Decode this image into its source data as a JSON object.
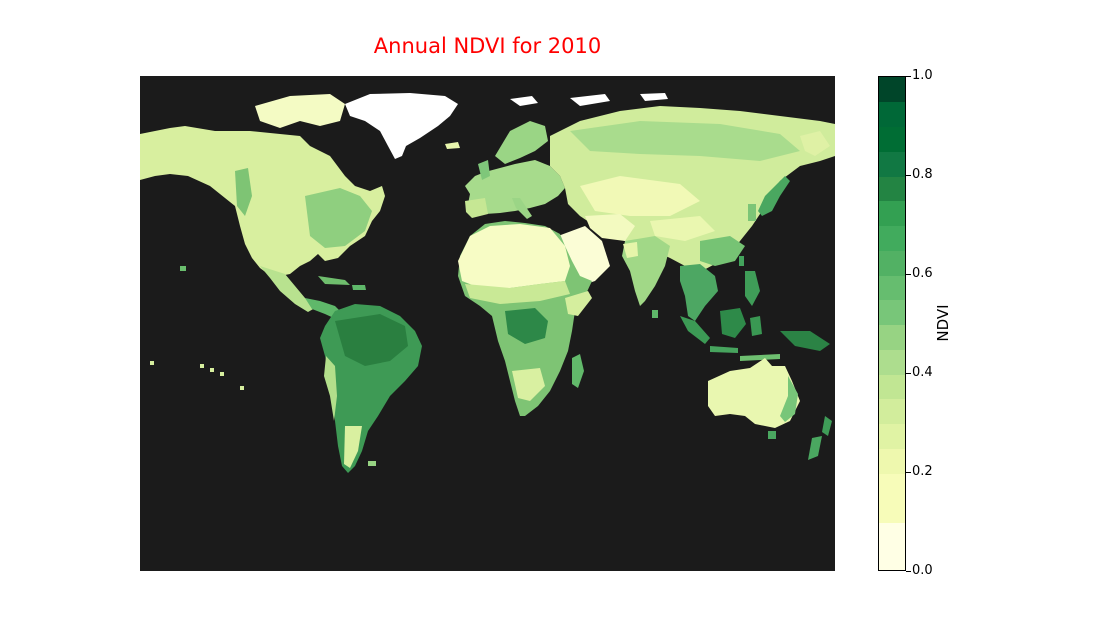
{
  "map": {
    "title": "Annual NDVI for 2010",
    "title_color": "#ff0000",
    "ocean_color": "#1b1b1b",
    "ice_color": "#ffffff",
    "projection": "Plate Carree (equirectangular), longitude -180 to 180, latitude approx. -58 to 82",
    "lat_range": [
      -58,
      82
    ],
    "lon_range": [
      -180,
      180
    ],
    "regions": [
      {
        "name": "north-america",
        "ndvi": 0.3
      },
      {
        "name": "alaska",
        "ndvi": 0.25
      },
      {
        "name": "greenland",
        "ndvi": 0.0
      },
      {
        "name": "central-america",
        "ndvi": 0.6
      },
      {
        "name": "south-america",
        "ndvi": 0.8
      },
      {
        "name": "europe",
        "ndvi": 0.45
      },
      {
        "name": "asia",
        "ndvi": 0.3
      },
      {
        "name": "arabia",
        "ndvi": 0.05
      },
      {
        "name": "india",
        "ndvi": 0.45
      },
      {
        "name": "southeast-asia",
        "ndvi": 0.75
      },
      {
        "name": "indonesia",
        "ndvi": 0.8
      },
      {
        "name": "africa",
        "ndvi": 0.5
      },
      {
        "name": "sahara",
        "ndvi": 0.1
      },
      {
        "name": "madagascar",
        "ndvi": 0.6
      },
      {
        "name": "australia",
        "ndvi": 0.2
      },
      {
        "name": "new-zealand",
        "ndvi": 0.7
      },
      {
        "name": "japan",
        "ndvi": 0.75
      }
    ]
  },
  "colorbar": {
    "label": "NDVI",
    "colormap": "YlGn",
    "vmin": 0.0,
    "vmax": 1.0,
    "ticks": [
      {
        "value": 0.0,
        "label": "0.0"
      },
      {
        "value": 0.2,
        "label": "0.2"
      },
      {
        "value": 0.4,
        "label": "0.4"
      },
      {
        "value": 0.6,
        "label": "0.6"
      },
      {
        "value": 0.8,
        "label": "0.8"
      },
      {
        "value": 1.0,
        "label": "1.0"
      }
    ],
    "bin_edges": [
      0.0,
      0.1,
      0.2,
      0.25,
      0.3,
      0.35,
      0.4,
      0.45,
      0.5,
      0.55,
      0.6,
      0.65,
      0.7,
      0.75,
      0.8,
      0.85,
      0.9,
      0.95,
      1.0
    ],
    "bin_colors": [
      "#ffffe5",
      "#f7fcb9",
      "#eef8ae",
      "#e0f3a4",
      "#d2ed9c",
      "#c1e693",
      "#addd8e",
      "#97d383",
      "#78c679",
      "#66bd6f",
      "#52b164",
      "#41ab5d",
      "#33a052",
      "#238443",
      "#117843",
      "#006d34",
      "#006837",
      "#004529"
    ]
  }
}
